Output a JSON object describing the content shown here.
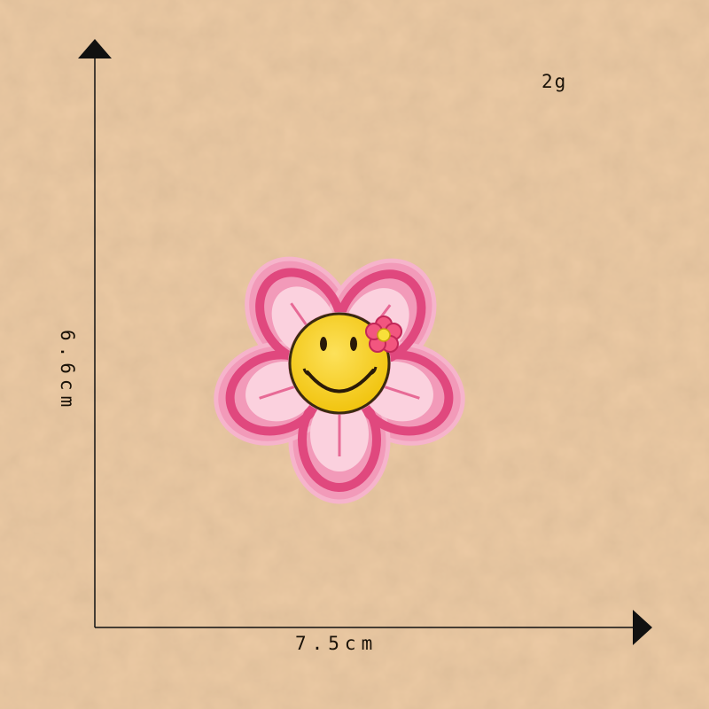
{
  "labels": {
    "weight": "2g",
    "width": "7.5cm",
    "height": "6.6cm"
  },
  "colors": {
    "background": "#eccaa4",
    "petal_outer": "#f29ab9",
    "petal_edge": "#e0487e",
    "petal_inner": "#fbd1de",
    "face": "#f5cf1c",
    "face_outline": "#3a2a10",
    "arrow": "#111111"
  },
  "icons": {
    "patch": "flower-smiley-patch",
    "small_flower": "small-flower-icon"
  }
}
